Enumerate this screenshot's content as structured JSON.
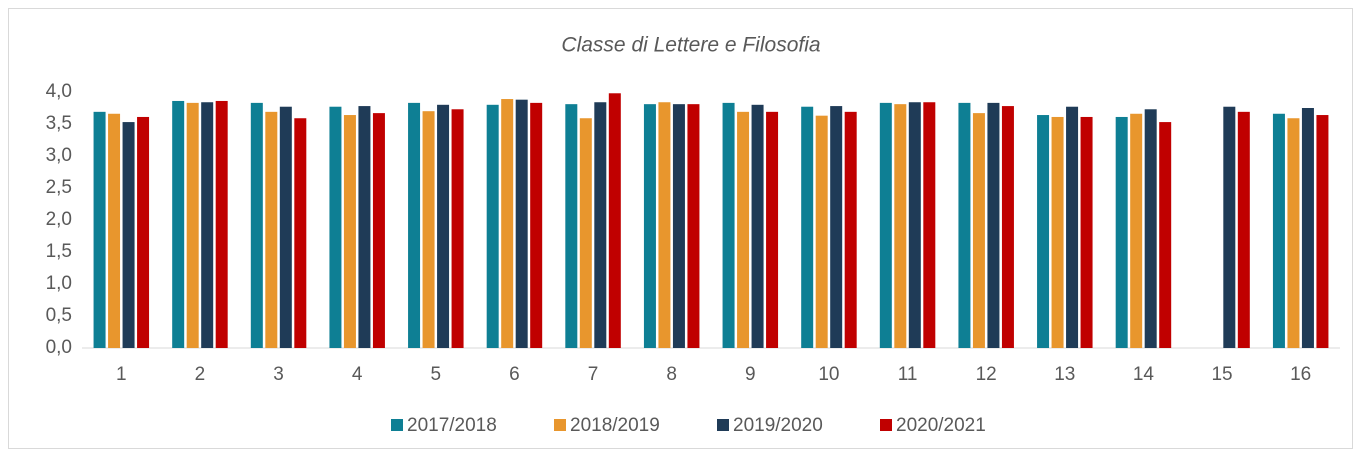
{
  "chart_data": {
    "type": "bar",
    "title": "Classe di Lettere e Filosofia",
    "categories": [
      "1",
      "2",
      "3",
      "4",
      "5",
      "6",
      "7",
      "8",
      "9",
      "10",
      "11",
      "12",
      "13",
      "14",
      "15",
      "16"
    ],
    "series": [
      {
        "name": "2017/2018",
        "color": "#0e7f94",
        "values": [
          3.69,
          3.86,
          3.83,
          3.77,
          3.83,
          3.8,
          3.81,
          3.81,
          3.83,
          3.77,
          3.83,
          3.83,
          3.64,
          3.61,
          null,
          3.66
        ]
      },
      {
        "name": "2018/2019",
        "color": "#e8962d",
        "values": [
          3.66,
          3.83,
          3.69,
          3.64,
          3.7,
          3.89,
          3.59,
          3.84,
          3.69,
          3.63,
          3.81,
          3.67,
          3.61,
          3.66,
          null,
          3.59
        ]
      },
      {
        "name": "2019/2020",
        "color": "#1f3b57",
        "values": [
          3.53,
          3.84,
          3.77,
          3.78,
          3.8,
          3.88,
          3.84,
          3.81,
          3.8,
          3.78,
          3.84,
          3.83,
          3.77,
          3.73,
          3.77,
          3.75
        ]
      },
      {
        "name": "2020/2021",
        "color": "#c00000",
        "values": [
          3.61,
          3.86,
          3.59,
          3.67,
          3.73,
          3.83,
          3.98,
          3.81,
          3.69,
          3.69,
          3.84,
          3.78,
          3.61,
          3.53,
          3.69,
          3.64
        ]
      }
    ],
    "ylim": [
      0,
      4
    ],
    "yticks": [
      {
        "value": 0,
        "label": "0,0"
      },
      {
        "value": 0.5,
        "label": "0,5"
      },
      {
        "value": 1,
        "label": "1,0"
      },
      {
        "value": 1.5,
        "label": "1,5"
      },
      {
        "value": 2,
        "label": "2,0"
      },
      {
        "value": 2.5,
        "label": "2,5"
      },
      {
        "value": 3,
        "label": "3,0"
      },
      {
        "value": 3.5,
        "label": "3,5"
      },
      {
        "value": 4,
        "label": "4,0"
      }
    ],
    "grid": false,
    "legend": "bottom"
  }
}
